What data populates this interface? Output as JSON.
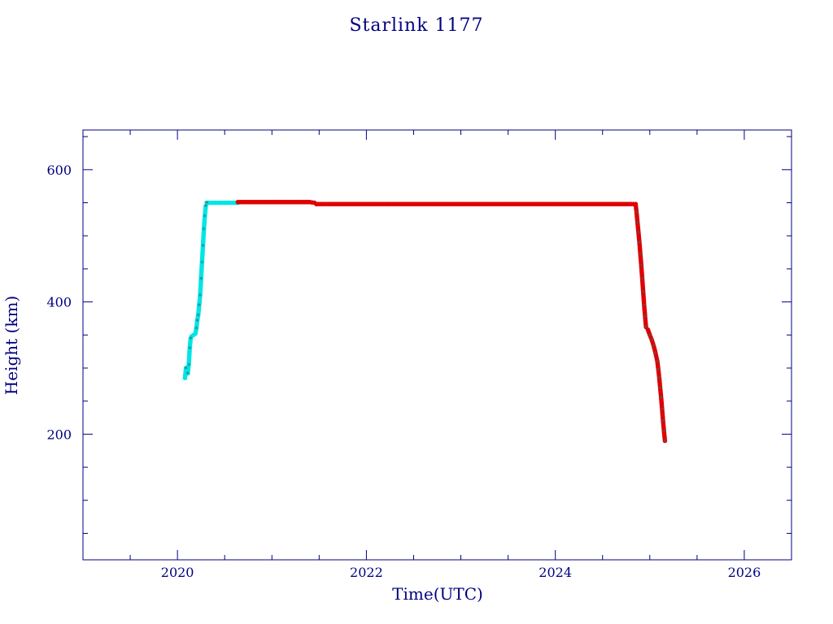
{
  "chart_data": {
    "type": "scatter",
    "title": "Starlink 1177",
    "xlabel": "Time(UTC)",
    "ylabel": "Height (km)",
    "xlim": [
      2019.0,
      2026.5
    ],
    "ylim": [
      10,
      660
    ],
    "x_ticks": [
      2020,
      2022,
      2024,
      2026
    ],
    "x_tick_labels": [
      "2020",
      "2022",
      "2024",
      "2026"
    ],
    "y_ticks": [
      200,
      400,
      600
    ],
    "y_tick_labels": [
      "200",
      "400",
      "600"
    ],
    "x_minor_step": 0.5,
    "y_minor_step": 50,
    "grid": false,
    "legend": "none",
    "colors": {
      "axis": "#000080",
      "ascent": "#00e5e5",
      "operational": "#e00000",
      "marker": "#2f6f6f"
    },
    "series": [
      {
        "color": "#00e5e5",
        "points": [
          [
            2020.08,
            285
          ],
          [
            2020.09,
            300
          ],
          [
            2020.1,
            298
          ],
          [
            2020.11,
            292
          ],
          [
            2020.12,
            305
          ],
          [
            2020.13,
            330
          ],
          [
            2020.14,
            345
          ],
          [
            2020.15,
            348
          ],
          [
            2020.17,
            350
          ],
          [
            2020.19,
            352
          ],
          [
            2020.2,
            360
          ],
          [
            2020.21,
            372
          ],
          [
            2020.22,
            380
          ],
          [
            2020.23,
            395
          ],
          [
            2020.24,
            410
          ],
          [
            2020.25,
            435
          ],
          [
            2020.26,
            460
          ],
          [
            2020.27,
            485
          ],
          [
            2020.28,
            510
          ],
          [
            2020.29,
            530
          ],
          [
            2020.3,
            545
          ],
          [
            2020.31,
            550
          ],
          [
            2020.35,
            550
          ],
          [
            2020.4,
            550
          ],
          [
            2020.45,
            550
          ],
          [
            2020.5,
            550
          ],
          [
            2020.55,
            550
          ],
          [
            2020.6,
            550
          ],
          [
            2020.64,
            550
          ]
        ]
      },
      {
        "color": "#e00000",
        "points": [
          [
            2020.64,
            551
          ],
          [
            2020.75,
            551
          ],
          [
            2020.9,
            551
          ],
          [
            2021.0,
            551
          ],
          [
            2021.1,
            551
          ],
          [
            2021.2,
            551
          ],
          [
            2021.3,
            551
          ],
          [
            2021.4,
            551
          ],
          [
            2021.45,
            550
          ],
          [
            2021.47,
            548
          ],
          [
            2021.6,
            548
          ],
          [
            2021.8,
            548
          ],
          [
            2022.0,
            548
          ],
          [
            2022.2,
            548
          ],
          [
            2022.4,
            548
          ],
          [
            2022.6,
            548
          ],
          [
            2022.8,
            548
          ],
          [
            2023.0,
            548
          ],
          [
            2023.2,
            548
          ],
          [
            2023.4,
            548
          ],
          [
            2023.6,
            548
          ],
          [
            2023.8,
            548
          ],
          [
            2024.0,
            548
          ],
          [
            2024.2,
            548
          ],
          [
            2024.4,
            548
          ],
          [
            2024.6,
            548
          ],
          [
            2024.8,
            548
          ],
          [
            2024.85,
            548
          ],
          [
            2024.86,
            535
          ],
          [
            2024.87,
            520
          ],
          [
            2024.88,
            505
          ],
          [
            2024.89,
            490
          ],
          [
            2024.9,
            472
          ],
          [
            2024.91,
            455
          ],
          [
            2024.92,
            435
          ],
          [
            2024.93,
            415
          ],
          [
            2024.94,
            395
          ],
          [
            2024.95,
            378
          ],
          [
            2024.96,
            362
          ],
          [
            2024.98,
            358
          ],
          [
            2025.0,
            350
          ],
          [
            2025.02,
            343
          ],
          [
            2025.04,
            334
          ],
          [
            2025.06,
            323
          ],
          [
            2025.08,
            310
          ],
          [
            2025.09,
            298
          ],
          [
            2025.1,
            285
          ],
          [
            2025.11,
            270
          ],
          [
            2025.12,
            255
          ],
          [
            2025.13,
            238
          ],
          [
            2025.14,
            220
          ],
          [
            2025.15,
            205
          ],
          [
            2025.16,
            190
          ]
        ]
      }
    ]
  }
}
